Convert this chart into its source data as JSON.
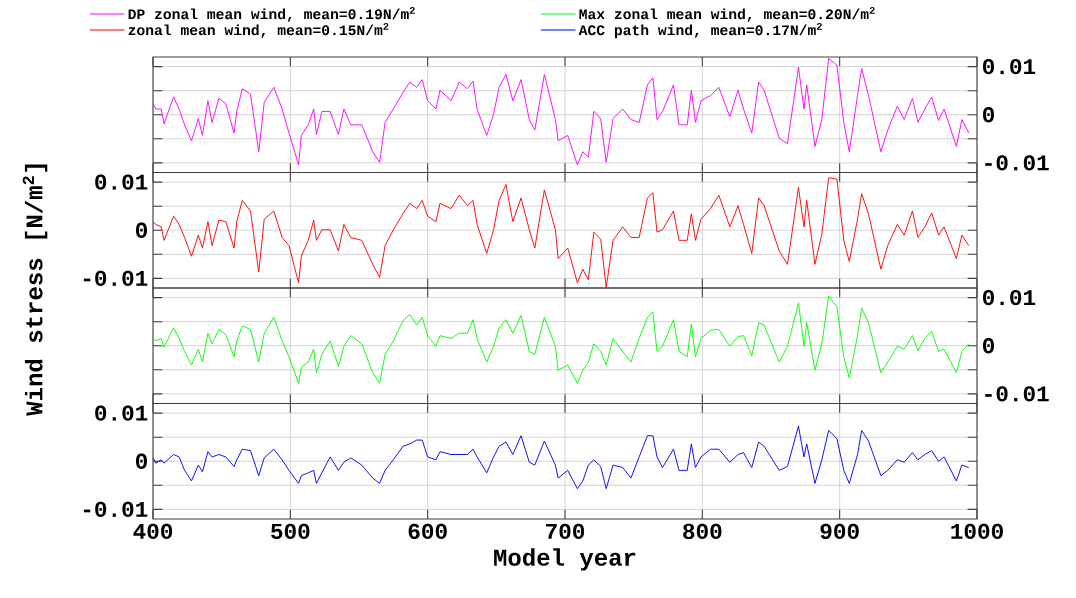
{
  "chart_data": [
    {
      "type": "line",
      "legend": "top",
      "grid": true,
      "tick_labels": "y",
      "xlim": [
        400,
        1000
      ],
      "xticks": [
        400,
        500,
        600,
        700,
        800,
        900,
        1000
      ],
      "y2lim": [
        -0.012,
        0.012
      ],
      "y2ticks": [
        -0.01,
        0,
        0.01
      ],
      "x": [
        400,
        402,
        406,
        408,
        415,
        419,
        423,
        428,
        433,
        436,
        440,
        443,
        448,
        453,
        459,
        461,
        465,
        471,
        477,
        481,
        488,
        494,
        499,
        506,
        508,
        513,
        517,
        519,
        523,
        529,
        535,
        539,
        544,
        552,
        560,
        565,
        569,
        575,
        582,
        587,
        592,
        596,
        600,
        606,
        609,
        617,
        623,
        629,
        633,
        636,
        643,
        648,
        652,
        657,
        662,
        668,
        674,
        678,
        685,
        693,
        695,
        702,
        709,
        713,
        717,
        721,
        726,
        730,
        735,
        742,
        748,
        754,
        760,
        764,
        767,
        771,
        779,
        783,
        789,
        792,
        795,
        799,
        806,
        812,
        820,
        826,
        830,
        836,
        841,
        845,
        856,
        862,
        870,
        874,
        876,
        882,
        887,
        892,
        898,
        903,
        907,
        913,
        916,
        921,
        930,
        935,
        942,
        947,
        953,
        957,
        962,
        967,
        972,
        976,
        985,
        989,
        994
      ],
      "series": [
        {
          "name": "DP zonal mean wind, mean=0.19N/m$^{2}$",
          "color": "#ff00ff",
          "axis": "y2",
          "values": [
            0.0023,
            0.0012,
            0.0012,
            -0.0019,
            0.0037,
            0.0012,
            -0.0021,
            -0.0054,
            -0.0008,
            -0.0043,
            0.0029,
            -0.0016,
            0.0034,
            0.0023,
            -0.0038,
            0.0007,
            0.0054,
            0.0043,
            -0.0077,
            0.0026,
            0.0057,
            0.0012,
            -0.0038,
            -0.0104,
            -0.0043,
            -0.0021,
            0.0012,
            -0.0041,
            0.0007,
            0.0007,
            -0.0041,
            0.0012,
            -0.0021,
            -0.0021,
            -0.0077,
            -0.0099,
            -0.0016,
            0.0012,
            0.0046,
            0.0068,
            0.0057,
            0.0073,
            0.0029,
            0.0012,
            0.0051,
            0.0029,
            0.0068,
            0.0054,
            0.007,
            0.0012,
            -0.0043,
            0.0001,
            0.0057,
            0.0084,
            0.0029,
            0.0073,
            -0.001,
            -0.0032,
            0.0084,
            -0.001,
            -0.0054,
            -0.0043,
            -0.0104,
            -0.0077,
            -0.0088,
            0.0007,
            -0.0008,
            -0.0099,
            -0.0008,
            0.0012,
            -0.001,
            -0.0016,
            0.0062,
            0.0077,
            -0.001,
            0.0007,
            0.0062,
            -0.0021,
            -0.0021,
            0.0051,
            -0.0016,
            0.0029,
            0.004,
            0.0057,
            -0.0004,
            0.0051,
            0.0012,
            -0.0038,
            0.0068,
            0.0051,
            -0.0049,
            -0.006,
            0.0099,
            0.0012,
            0.0062,
            -0.0066,
            -0.001,
            0.0117,
            0.0103,
            -0.0016,
            -0.0077,
            0.004,
            0.0096,
            0.004,
            -0.0077,
            -0.0032,
            0.0018,
            -0.001,
            0.0034,
            -0.0016,
            0.0012,
            0.0037,
            -0.0012,
            0.0012,
            -0.0066,
            -0.001,
            -0.0038
          ]
        }
      ]
    },
    {
      "type": "line",
      "legend": "top",
      "grid": true,
      "tick_labels": "y",
      "ylabel": "Wind stress [N/m$^{2}$]",
      "xlim": [
        400,
        1000
      ],
      "xticks": [
        400,
        500,
        600,
        700,
        800,
        900,
        1000
      ],
      "ylim": [
        -0.012,
        0.012
      ],
      "yticks": [
        -0.01,
        0,
        0.01
      ],
      "x": [
        400,
        402,
        406,
        408,
        415,
        419,
        423,
        428,
        433,
        436,
        440,
        443,
        448,
        453,
        459,
        461,
        465,
        471,
        477,
        481,
        488,
        494,
        499,
        506,
        508,
        513,
        517,
        519,
        523,
        529,
        535,
        539,
        544,
        552,
        560,
        565,
        569,
        575,
        582,
        587,
        592,
        596,
        600,
        606,
        609,
        617,
        623,
        629,
        633,
        636,
        643,
        648,
        652,
        657,
        662,
        668,
        674,
        678,
        685,
        693,
        695,
        702,
        709,
        713,
        717,
        721,
        726,
        730,
        735,
        742,
        748,
        754,
        760,
        764,
        767,
        771,
        779,
        783,
        789,
        792,
        795,
        799,
        806,
        812,
        820,
        826,
        830,
        836,
        841,
        845,
        856,
        862,
        870,
        874,
        876,
        882,
        887,
        892,
        898,
        903,
        907,
        913,
        916,
        921,
        930,
        935,
        942,
        947,
        953,
        957,
        962,
        967,
        972,
        976,
        985,
        989,
        994
      ],
      "series": [
        {
          "name": "zonal mean wind,     mean=0.15N/m$^{2}$",
          "color": "#ff0000",
          "values": [
            0.0018,
            0.0012,
            0.0007,
            -0.0021,
            0.0029,
            0.0012,
            -0.0015,
            -0.0054,
            -0.001,
            -0.0037,
            0.0018,
            -0.0032,
            0.0021,
            0.0018,
            -0.0037,
            0.0018,
            0.0062,
            0.004,
            -0.0087,
            0.0023,
            0.004,
            -0.0015,
            -0.0032,
            -0.0109,
            -0.0054,
            -0.0021,
            0.0021,
            -0.0021,
            0.0001,
            0.0001,
            -0.0043,
            0.0012,
            -0.0015,
            -0.0021,
            -0.0071,
            -0.0098,
            -0.0032,
            0.0001,
            0.0034,
            0.0056,
            0.0045,
            0.0062,
            0.0029,
            0.0018,
            0.0056,
            0.0045,
            0.0073,
            0.0051,
            0.0062,
            0.0012,
            -0.0048,
            0.0001,
            0.0062,
            0.0095,
            0.0018,
            0.0067,
            0.0001,
            -0.0037,
            0.0084,
            0.0001,
            -0.0059,
            -0.0037,
            -0.0109,
            -0.0081,
            -0.0103,
            -0.0004,
            -0.0019,
            -0.0119,
            -0.0021,
            0.0007,
            -0.0015,
            -0.0015,
            0.0067,
            0.0078,
            -0.0004,
            0.0001,
            0.004,
            -0.0021,
            -0.0021,
            0.0034,
            -0.0021,
            0.0023,
            0.0045,
            0.0073,
            0.0007,
            0.0051,
            0.0012,
            -0.0048,
            0.0067,
            0.0051,
            -0.0043,
            -0.0071,
            0.0089,
            0.0007,
            0.0062,
            -0.0071,
            -0.0008,
            0.0109,
            0.0106,
            -0.0021,
            -0.0065,
            0.0023,
            0.0076,
            0.0034,
            -0.0081,
            -0.0032,
            0.0012,
            -0.001,
            0.004,
            -0.0015,
            0.0007,
            0.0036,
            -0.001,
            0.0007,
            -0.0059,
            -0.001,
            -0.0032
          ]
        }
      ]
    },
    {
      "type": "line",
      "legend": "top",
      "grid": true,
      "tick_labels": "y",
      "xlim": [
        400,
        1000
      ],
      "xticks": [
        400,
        500,
        600,
        700,
        800,
        900,
        1000
      ],
      "y2lim": [
        -0.012,
        0.012
      ],
      "y2ticks": [
        -0.01,
        0,
        0.01
      ],
      "x": [
        400,
        402,
        406,
        408,
        415,
        419,
        423,
        428,
        433,
        436,
        440,
        443,
        448,
        453,
        459,
        461,
        465,
        471,
        477,
        481,
        488,
        494,
        499,
        506,
        508,
        513,
        517,
        519,
        523,
        529,
        535,
        539,
        544,
        552,
        560,
        565,
        569,
        575,
        582,
        587,
        592,
        596,
        600,
        606,
        609,
        617,
        623,
        629,
        633,
        636,
        643,
        648,
        652,
        657,
        662,
        668,
        674,
        678,
        685,
        693,
        695,
        702,
        709,
        713,
        717,
        721,
        726,
        730,
        735,
        742,
        748,
        754,
        760,
        764,
        767,
        771,
        779,
        783,
        789,
        792,
        795,
        799,
        806,
        812,
        820,
        826,
        830,
        836,
        841,
        845,
        856,
        862,
        870,
        874,
        876,
        882,
        887,
        892,
        898,
        903,
        907,
        913,
        916,
        921,
        930,
        935,
        942,
        947,
        953,
        957,
        962,
        967,
        972,
        976,
        985,
        989,
        994
      ],
      "series": [
        {
          "name": "Max zonal mean wind, mean=0.20N/m$^{2}$",
          "color": "#00ff00",
          "axis": "y2",
          "values": [
            0.0015,
            0.001,
            0.0015,
            -0.0003,
            0.0037,
            0.0015,
            -0.0012,
            -0.004,
            -0.0007,
            -0.0034,
            0.0026,
            0.0004,
            0.0034,
            0.0023,
            -0.0023,
            0.001,
            0.0041,
            0.0034,
            -0.0034,
            0.0026,
            0.0059,
            0.001,
            -0.0023,
            -0.0078,
            -0.0045,
            -0.0034,
            -0.0007,
            -0.0056,
            -0.0018,
            0.001,
            -0.0043,
            -0.0001,
            0.0021,
            0.0004,
            -0.0056,
            -0.0078,
            -0.0018,
            0.001,
            0.0052,
            0.0065,
            0.0043,
            0.0059,
            0.0021,
            -0.0001,
            0.0021,
            0.0015,
            0.0026,
            0.0026,
            0.0054,
            0.0015,
            -0.0034,
            -0.0001,
            0.0037,
            0.0054,
            0.0026,
            0.0063,
            -0.0012,
            -0.0018,
            0.0059,
            -0.0001,
            -0.0051,
            -0.004,
            -0.0078,
            -0.0051,
            -0.0034,
            0.0004,
            -0.0012,
            -0.004,
            0.0015,
            -0.0012,
            -0.0034,
            0.0015,
            0.0059,
            0.007,
            -0.0012,
            -0.0001,
            0.0054,
            -0.0012,
            -0.0023,
            0.0045,
            -0.0023,
            0.0015,
            0.0032,
            0.0034,
            -0.0001,
            0.0019,
            0.0021,
            -0.0021,
            0.0048,
            0.0043,
            -0.0034,
            -0.0001,
            0.0089,
            -0.0001,
            0.0048,
            -0.0051,
            0.0004,
            0.0103,
            0.0081,
            -0.0023,
            -0.0067,
            0.0021,
            0.0078,
            0.0048,
            -0.0056,
            -0.0034,
            -0.0001,
            -0.0007,
            0.0021,
            -0.001,
            0.0015,
            0.003,
            -0.0012,
            -0.0007,
            -0.0056,
            -0.0012,
            0.0004
          ]
        }
      ]
    },
    {
      "type": "line",
      "legend": "top",
      "grid": true,
      "xlabel": "Model year",
      "xlim": [
        400,
        1000
      ],
      "xticks": [
        400,
        500,
        600,
        700,
        800,
        900,
        1000
      ],
      "ylim": [
        -0.012,
        0.012
      ],
      "yticks": [
        -0.01,
        0,
        0.01
      ],
      "x": [
        400,
        402,
        406,
        408,
        415,
        419,
        423,
        428,
        433,
        436,
        440,
        443,
        448,
        453,
        459,
        461,
        465,
        471,
        477,
        481,
        488,
        494,
        499,
        506,
        508,
        513,
        517,
        519,
        523,
        529,
        535,
        539,
        544,
        552,
        560,
        565,
        569,
        575,
        582,
        587,
        592,
        596,
        600,
        606,
        609,
        617,
        623,
        629,
        633,
        636,
        643,
        648,
        652,
        657,
        662,
        668,
        674,
        678,
        685,
        693,
        695,
        702,
        709,
        713,
        717,
        721,
        726,
        730,
        735,
        742,
        748,
        754,
        760,
        764,
        767,
        771,
        779,
        783,
        789,
        792,
        795,
        799,
        806,
        812,
        820,
        826,
        830,
        836,
        841,
        845,
        856,
        862,
        870,
        874,
        876,
        882,
        887,
        892,
        898,
        903,
        907,
        913,
        916,
        921,
        930,
        935,
        942,
        947,
        953,
        957,
        962,
        967,
        972,
        976,
        985,
        989,
        994
      ],
      "series": [
        {
          "name": "ACC path wind,       mean=0.17N/m$^{2}$",
          "color": "#0000ff",
          "values": [
            0.0007,
            -0.0004,
            0.0003,
            -0.0004,
            0.0014,
            0.0009,
            -0.0019,
            -0.0041,
            -0.0008,
            -0.0022,
            0.002,
            0.0009,
            0.0014,
            0.0009,
            -0.0011,
            0.0003,
            0.0025,
            0.0022,
            -0.003,
            0.0007,
            0.0025,
            0.0003,
            -0.0019,
            -0.0046,
            -0.003,
            -0.0024,
            -0.0019,
            -0.0046,
            -0.0024,
            0.0009,
            -0.0019,
            -0.0002,
            0.0007,
            -0.0008,
            -0.0035,
            -0.0046,
            -0.0019,
            0.0003,
            0.0031,
            0.0036,
            0.0044,
            0.0044,
            0.0009,
            0.0003,
            0.002,
            0.0014,
            0.0014,
            0.0014,
            0.0025,
            0.0009,
            -0.0024,
            0.0009,
            0.0031,
            0.004,
            0.0014,
            0.0053,
            -0.0002,
            -0.0008,
            0.0042,
            -0.0008,
            -0.0035,
            -0.0019,
            -0.0057,
            -0.0041,
            -0.0008,
            0.0003,
            -0.0011,
            -0.0057,
            -0.0008,
            -0.0013,
            -0.0035,
            0.0009,
            0.0053,
            0.0053,
            0.0009,
            -0.0013,
            0.0025,
            -0.0019,
            -0.0019,
            0.0036,
            -0.0013,
            0.0009,
            0.0025,
            0.0025,
            -0.0002,
            0.0014,
            0.0018,
            -0.0013,
            0.004,
            0.0031,
            -0.0019,
            -0.0011,
            0.0073,
            0.0009,
            0.0036,
            -0.0046,
            0.0003,
            0.0064,
            0.0047,
            -0.0019,
            -0.0046,
            0.0014,
            0.0064,
            0.0042,
            -0.003,
            -0.0019,
            0.0003,
            -0.0002,
            0.0018,
            0.0003,
            0.0014,
            0.0022,
            0,
            0.0009,
            -0.0041,
            -0.0008,
            -0.0013
          ]
        }
      ]
    }
  ]
}
